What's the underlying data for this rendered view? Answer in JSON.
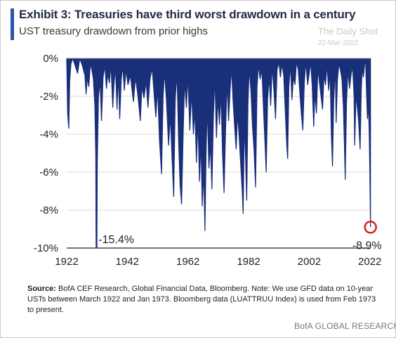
{
  "header": {
    "title": "Exhibit 3: Treasuries have third worst drawdown  in a century",
    "subtitle": "UST treasury drawdown from prior highs"
  },
  "watermark": {
    "name": "The Daily Shot",
    "date": "22-Mar-2022"
  },
  "source": {
    "label": "Source:",
    "text": "BofA CEF Research, Global Financial Data, Bloomberg. Note: We use GFD data on 10-year USTs between March 1922  and Jan 1973.  Bloomberg data (LUATTRUU  Index) is used  from Feb 1973  to present."
  },
  "footer": {
    "brand": "BofA GLOBAL RESEARCH"
  },
  "colors": {
    "series": "#1a2f7a",
    "accent": "#2b55a8",
    "highlight": "#e21b1b",
    "grid": "#d9d9d9"
  },
  "chart_data": {
    "type": "area",
    "title": "UST treasury drawdown from prior highs",
    "xlabel": "",
    "ylabel": "",
    "xlim": [
      1922,
      2022.3
    ],
    "ylim": [
      -10,
      0
    ],
    "x_ticks": [
      1922,
      1942,
      1962,
      1982,
      2002,
      2022
    ],
    "x_tick_labels": [
      "1922",
      "1942",
      "1962",
      "1982",
      "2002",
      "2022"
    ],
    "y_ticks": [
      0,
      -2,
      -4,
      -6,
      -8,
      -10
    ],
    "y_tick_labels": [
      "0%",
      "-2%",
      "-4%",
      "-6%",
      "-8%",
      "-10%"
    ],
    "grid": "horizontal",
    "annotations": [
      {
        "text": "-15.4%",
        "x": 1931.8,
        "y": -15.4
      },
      {
        "text": "-8.9%",
        "x": 2021.2,
        "y": -8.9,
        "circled": true
      }
    ],
    "series": [
      {
        "values": [
          [
            1922.0,
            0
          ],
          [
            1922.3,
            -2.9
          ],
          [
            1922.7,
            -3.7
          ],
          [
            1923.0,
            -1.2
          ],
          [
            1923.4,
            -0.3
          ],
          [
            1924.0,
            0
          ],
          [
            1925.0,
            -0.5
          ],
          [
            1925.6,
            -0.8
          ],
          [
            1926.3,
            0
          ],
          [
            1927.2,
            -0.4
          ],
          [
            1928.0,
            -0.9
          ],
          [
            1928.4,
            -1.9
          ],
          [
            1928.8,
            -1.0
          ],
          [
            1929.3,
            -1.5
          ],
          [
            1929.8,
            -0.3
          ],
          [
            1930.3,
            -0.6
          ],
          [
            1930.8,
            -1.1
          ],
          [
            1931.3,
            -2.5
          ],
          [
            1931.6,
            -5.2
          ],
          [
            1931.8,
            -15.4
          ],
          [
            1932.1,
            -5.5
          ],
          [
            1932.5,
            -2.0
          ],
          [
            1933.0,
            -1.2
          ],
          [
            1933.5,
            -3.3
          ],
          [
            1934.0,
            -1.0
          ],
          [
            1934.6,
            -0.4
          ],
          [
            1935.1,
            -1.6
          ],
          [
            1935.6,
            -0.8
          ],
          [
            1936.1,
            -1.3
          ],
          [
            1936.6,
            -0.3
          ],
          [
            1937.2,
            -2.6
          ],
          [
            1937.6,
            -1.4
          ],
          [
            1938.1,
            -0.5
          ],
          [
            1938.6,
            -2.7
          ],
          [
            1939.0,
            -0.8
          ],
          [
            1939.5,
            -3.2
          ],
          [
            1940.0,
            -1.1
          ],
          [
            1940.5,
            -0.4
          ],
          [
            1941.0,
            -1.7
          ],
          [
            1941.6,
            -0.6
          ],
          [
            1942.2,
            -1.4
          ],
          [
            1943.0,
            -0.9
          ],
          [
            1944.0,
            -2.3
          ],
          [
            1944.7,
            -1.0
          ],
          [
            1945.5,
            -2.0
          ],
          [
            1946.3,
            -3.3
          ],
          [
            1946.8,
            -1.5
          ],
          [
            1947.5,
            -2.1
          ],
          [
            1948.2,
            -1.2
          ],
          [
            1948.8,
            -2.6
          ],
          [
            1949.5,
            -1.1
          ],
          [
            1950.2,
            -0.5
          ],
          [
            1950.8,
            -1.8
          ],
          [
            1951.4,
            -3.1
          ],
          [
            1952.0,
            -1.6
          ],
          [
            1952.6,
            -4.3
          ],
          [
            1953.3,
            -6.1
          ],
          [
            1953.8,
            -2.0
          ],
          [
            1954.3,
            -0.7
          ],
          [
            1954.9,
            -2.2
          ],
          [
            1955.6,
            -4.6
          ],
          [
            1956.2,
            -3.0
          ],
          [
            1956.8,
            -5.4
          ],
          [
            1957.3,
            -7.3
          ],
          [
            1957.8,
            -2.1
          ],
          [
            1958.4,
            -0.8
          ],
          [
            1958.9,
            -4.3
          ],
          [
            1959.4,
            -6.7
          ],
          [
            1959.9,
            -7.7
          ],
          [
            1960.4,
            -4.1
          ],
          [
            1960.9,
            -1.2
          ],
          [
            1961.5,
            -2.6
          ],
          [
            1962.0,
            -0.9
          ],
          [
            1962.6,
            -3.8
          ],
          [
            1963.2,
            -1.8
          ],
          [
            1963.8,
            -4.0
          ],
          [
            1964.3,
            -2.7
          ],
          [
            1964.8,
            -5.5
          ],
          [
            1965.3,
            -3.2
          ],
          [
            1965.8,
            -6.5
          ],
          [
            1966.3,
            -4.4
          ],
          [
            1966.7,
            -7.8
          ],
          [
            1967.2,
            -6.0
          ],
          [
            1967.6,
            -9.1
          ],
          [
            1968.0,
            -4.8
          ],
          [
            1968.4,
            -2.6
          ],
          [
            1968.9,
            -5.8
          ],
          [
            1969.4,
            -4.5
          ],
          [
            1969.9,
            -6.9
          ],
          [
            1970.4,
            -3.1
          ],
          [
            1970.9,
            -1.0
          ],
          [
            1971.4,
            -4.2
          ],
          [
            1971.9,
            -2.1
          ],
          [
            1972.4,
            -3.5
          ],
          [
            1972.9,
            -1.8
          ],
          [
            1973.4,
            -5.0
          ],
          [
            1973.9,
            -7.1
          ],
          [
            1974.4,
            -3.9
          ],
          [
            1974.9,
            -1.2
          ],
          [
            1975.4,
            -3.3
          ],
          [
            1975.9,
            -1.7
          ],
          [
            1976.4,
            -0.5
          ],
          [
            1976.9,
            -2.3
          ],
          [
            1977.4,
            -3.6
          ],
          [
            1977.9,
            -4.8
          ],
          [
            1978.4,
            -2.9
          ],
          [
            1978.9,
            -4.1
          ],
          [
            1979.4,
            -5.6
          ],
          [
            1979.9,
            -7.0
          ],
          [
            1980.2,
            -8.2
          ],
          [
            1980.6,
            -3.4
          ],
          [
            1981.0,
            -5.2
          ],
          [
            1981.4,
            -7.5
          ],
          [
            1981.8,
            -2.4
          ],
          [
            1982.2,
            -0.5
          ],
          [
            1982.8,
            -1.8
          ],
          [
            1983.3,
            -3.6
          ],
          [
            1983.8,
            -4.8
          ],
          [
            1984.3,
            -6.8
          ],
          [
            1984.8,
            -1.5
          ],
          [
            1985.3,
            -0.3
          ],
          [
            1985.8,
            -1.1
          ],
          [
            1986.4,
            -0.6
          ],
          [
            1986.9,
            -2.6
          ],
          [
            1987.4,
            -4.4
          ],
          [
            1987.8,
            -6.0
          ],
          [
            1988.3,
            -2.1
          ],
          [
            1988.8,
            -1.0
          ],
          [
            1989.3,
            -2.5
          ],
          [
            1989.8,
            -0.4
          ],
          [
            1990.4,
            -1.8
          ],
          [
            1990.9,
            -3.2
          ],
          [
            1991.4,
            -0.6
          ],
          [
            1992.0,
            -0.2
          ],
          [
            1992.5,
            -1.0
          ],
          [
            1993.0,
            -0.3
          ],
          [
            1993.6,
            -0.9
          ],
          [
            1994.1,
            -2.8
          ],
          [
            1994.6,
            -4.6
          ],
          [
            1994.9,
            -5.3
          ],
          [
            1995.3,
            -1.5
          ],
          [
            1995.8,
            -0.3
          ],
          [
            1996.3,
            -2.2
          ],
          [
            1996.8,
            -1.0
          ],
          [
            1997.3,
            -1.4
          ],
          [
            1997.8,
            -0.2
          ],
          [
            1998.4,
            -0.6
          ],
          [
            1998.9,
            -1.8
          ],
          [
            1999.4,
            -2.9
          ],
          [
            1999.9,
            -3.8
          ],
          [
            2000.4,
            -1.2
          ],
          [
            2000.9,
            -0.2
          ],
          [
            2001.5,
            -1.4
          ],
          [
            2002.0,
            -0.8
          ],
          [
            2002.5,
            -0.2
          ],
          [
            2003.0,
            -1.5
          ],
          [
            2003.5,
            -3.6
          ],
          [
            2003.9,
            -1.8
          ],
          [
            2004.4,
            -2.9
          ],
          [
            2004.9,
            -0.5
          ],
          [
            2005.4,
            -1.3
          ],
          [
            2005.9,
            -2.0
          ],
          [
            2006.4,
            -2.7
          ],
          [
            2006.9,
            -0.9
          ],
          [
            2007.4,
            -1.4
          ],
          [
            2007.9,
            -0.3
          ],
          [
            2008.4,
            -1.7
          ],
          [
            2008.9,
            -0.8
          ],
          [
            2009.3,
            -4.0
          ],
          [
            2009.7,
            -5.7
          ],
          [
            2010.1,
            -2.2
          ],
          [
            2010.6,
            -0.5
          ],
          [
            2010.9,
            -3.4
          ],
          [
            2011.3,
            -1.2
          ],
          [
            2011.8,
            -0.3
          ],
          [
            2012.3,
            -0.6
          ],
          [
            2012.8,
            -1.1
          ],
          [
            2013.3,
            -2.6
          ],
          [
            2013.6,
            -4.4
          ],
          [
            2013.9,
            -6.4
          ],
          [
            2014.3,
            -2.4
          ],
          [
            2014.8,
            -0.6
          ],
          [
            2015.3,
            -1.6
          ],
          [
            2015.8,
            -0.9
          ],
          [
            2016.3,
            -0.4
          ],
          [
            2016.8,
            -2.0
          ],
          [
            2017.0,
            -4.6
          ],
          [
            2017.5,
            -1.8
          ],
          [
            2017.9,
            -2.6
          ],
          [
            2018.3,
            -3.3
          ],
          [
            2018.8,
            -4.8
          ],
          [
            2019.2,
            -1.6
          ],
          [
            2019.6,
            -0.4
          ],
          [
            2019.9,
            -1.0
          ],
          [
            2020.3,
            -0.3
          ],
          [
            2020.6,
            -0.1
          ],
          [
            2020.9,
            -1.8
          ],
          [
            2021.2,
            -3.2
          ],
          [
            2021.5,
            -2.4
          ],
          [
            2021.8,
            -3.8
          ],
          [
            2022.0,
            -6.0
          ],
          [
            2022.22,
            -8.9
          ]
        ]
      }
    ]
  }
}
